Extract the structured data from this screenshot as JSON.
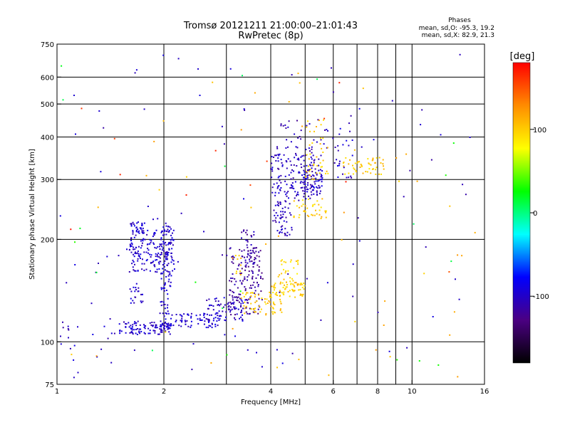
{
  "chart_data": {
    "type": "scatter",
    "title": "Tromsø 20121211 21:00:00–21:01:43",
    "subtitle": "RwPretec (8p)",
    "xlabel": "Frequency [MHz]",
    "ylabel": "Stationary phase Virtual Height [km]",
    "x_scale": "log",
    "y_scale": "log",
    "xlim": [
      1,
      16
    ],
    "ylim": [
      75,
      750
    ],
    "x_ticks": [
      1,
      2,
      4,
      6,
      8,
      10,
      16
    ],
    "x_tick_labels": [
      "1",
      "2",
      "4",
      "6",
      "8",
      "10",
      "16"
    ],
    "x_gridlines": [
      1,
      2,
      3,
      4,
      5,
      6,
      7,
      8,
      9,
      10
    ],
    "y_ticks": [
      75,
      100,
      200,
      300,
      400,
      500,
      600,
      750
    ],
    "y_tick_labels": [
      "75",
      "100",
      "200",
      "300",
      "400",
      "500",
      "600",
      "750"
    ],
    "y_gridlines": [
      100,
      200,
      300,
      400,
      500,
      600
    ],
    "grid": true,
    "stats": {
      "heading": "Phases",
      "line1": "mean, sd,O: -95.3, 19.2",
      "line2": "mean, sd,X:  82.9, 21.3"
    },
    "colorbar": {
      "unit": "[deg]",
      "range": [
        -180,
        180
      ],
      "ticks": [
        100,
        0,
        -100
      ],
      "tick_labels": [
        "100",
        "0",
        "-100"
      ],
      "colors": [
        "#ff0000",
        "#ff8c00",
        "#ffff00",
        "#00ff00",
        "#00ffff",
        "#0000ff",
        "#4b0082",
        "#000000"
      ]
    },
    "clusters": [
      {
        "f": [
          1.5,
          2.1
        ],
        "h": [
          105,
          115
        ],
        "phase": -100,
        "n": 110
      },
      {
        "f": [
          2.0,
          2.9
        ],
        "h": [
          110,
          122
        ],
        "phase": -95,
        "n": 80
      },
      {
        "f": [
          2.6,
          3.4
        ],
        "h": [
          115,
          135
        ],
        "phase": -100,
        "n": 70
      },
      {
        "f": [
          1.6,
          2.15
        ],
        "h": [
          160,
          215
        ],
        "phase": -98,
        "n": 180
      },
      {
        "f": [
          1.6,
          1.8
        ],
        "h": [
          210,
          225
        ],
        "phase": -95,
        "n": 25
      },
      {
        "f": [
          1.95,
          2.1
        ],
        "h": [
          120,
          225
        ],
        "phase": -95,
        "n": 80
      },
      {
        "f": [
          1.6,
          1.75
        ],
        "h": [
          130,
          145
        ],
        "phase": -100,
        "n": 20
      },
      {
        "f": [
          3.05,
          3.8
        ],
        "h": [
          120,
          190
        ],
        "phase": -118,
        "n": 160
      },
      {
        "f": [
          3.3,
          3.6
        ],
        "h": [
          170,
          215
        ],
        "phase": -112,
        "n": 30
      },
      {
        "f": [
          3.3,
          4.3
        ],
        "h": [
          120,
          140
        ],
        "phase": 100,
        "n": 70
      },
      {
        "f": [
          4.0,
          5.0
        ],
        "h": [
          135,
          150
        ],
        "phase": 100,
        "n": 60
      },
      {
        "f": [
          4.2,
          4.8
        ],
        "h": [
          150,
          175
        ],
        "phase": 95,
        "n": 25
      },
      {
        "f": [
          3.1,
          3.3
        ],
        "h": [
          155,
          180
        ],
        "phase": 110,
        "n": 10
      },
      {
        "f": [
          4.05,
          4.6
        ],
        "h": [
          205,
          260
        ],
        "phase": -105,
        "n": 55
      },
      {
        "f": [
          4.0,
          5.4
        ],
        "h": [
          260,
          360
        ],
        "phase": -102,
        "n": 120
      },
      {
        "f": [
          4.9,
          5.6
        ],
        "h": [
          270,
          330
        ],
        "phase": -100,
        "n": 70
      },
      {
        "f": [
          4.1,
          5.8
        ],
        "h": [
          300,
          450
        ],
        "phase": -108,
        "n": 60
      },
      {
        "f": [
          4.6,
          5.8
        ],
        "h": [
          230,
          265
        ],
        "phase": 100,
        "n": 40
      },
      {
        "f": [
          5.0,
          5.8
        ],
        "h": [
          300,
          450
        ],
        "phase": 100,
        "n": 40
      },
      {
        "f": [
          6.4,
          8.4
        ],
        "h": [
          310,
          350
        ],
        "phase": 100,
        "n": 50
      },
      {
        "f": [
          6.0,
          6.8
        ],
        "h": [
          300,
          480
        ],
        "phase": -100,
        "n": 25
      },
      {
        "f": [
          1.3,
          2.2
        ],
        "h": [
          165,
          190
        ],
        "phase": -100,
        "n": 10
      },
      {
        "f": [
          1.02,
          1.5
        ],
        "h": [
          85,
          115
        ],
        "phase": -100,
        "n": 20
      },
      {
        "f": [
          1.02,
          15.5
        ],
        "h": [
          78,
          720
        ],
        "phase": -100,
        "n": 90
      },
      {
        "f": [
          1.02,
          15.5
        ],
        "h": [
          78,
          720
        ],
        "phase": 110,
        "n": 45
      },
      {
        "f": [
          1.02,
          15.5
        ],
        "h": [
          78,
          720
        ],
        "phase": 20,
        "n": 20
      },
      {
        "f": [
          1.02,
          15.5
        ],
        "h": [
          78,
          720
        ],
        "phase": 160,
        "n": 12
      }
    ]
  }
}
